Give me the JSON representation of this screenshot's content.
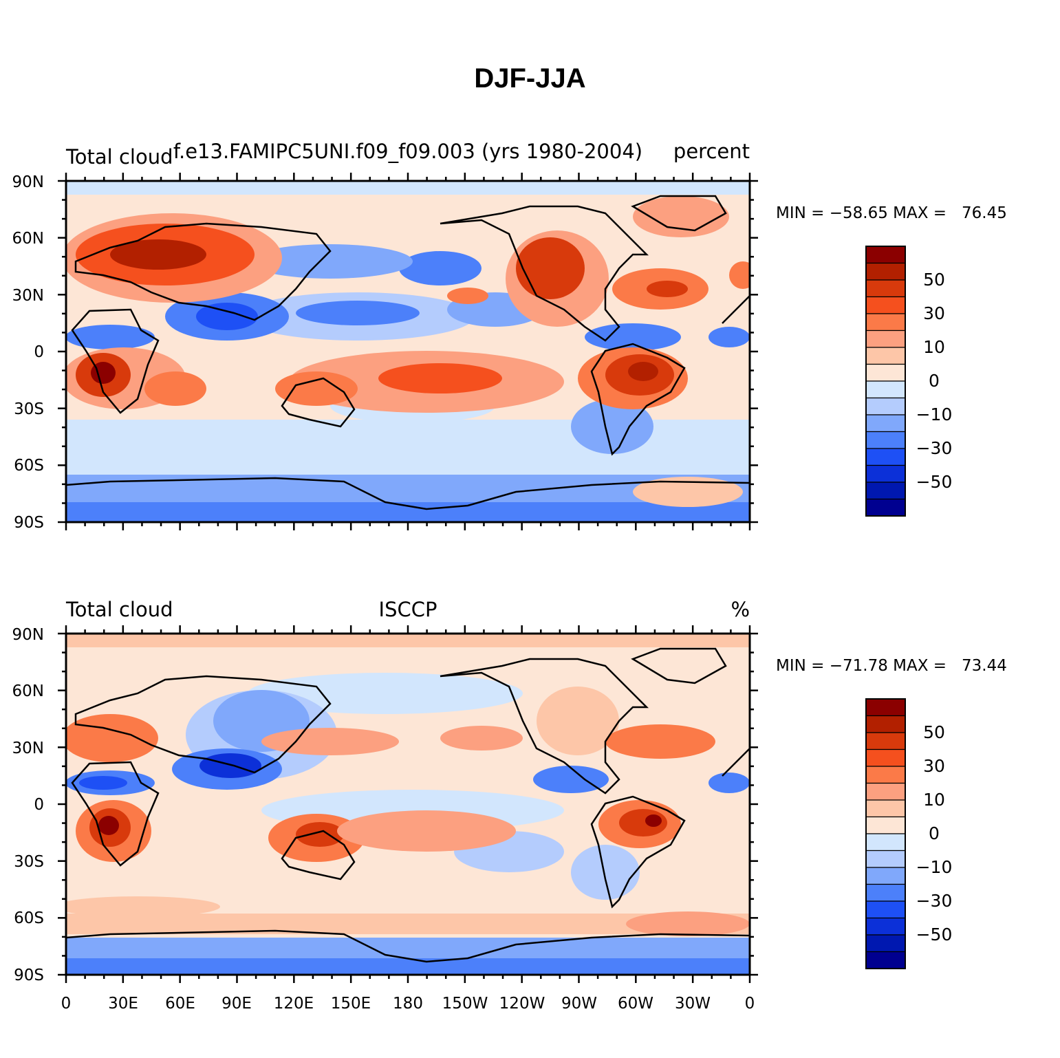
{
  "title": "DJF-JJA",
  "panels": [
    {
      "left_label": "Total cloud",
      "center_label": "f.e13.FAMIPC5UNI.f09_f09.003 (yrs 1980-2004)",
      "right_label": "percent",
      "stats": "MIN = −58.65 MAX =   76.45",
      "min": -58.65,
      "max": 76.45
    },
    {
      "left_label": "Total cloud",
      "center_label": "ISCCP",
      "right_label": "%",
      "stats": "MIN = −71.78 MAX =   73.44",
      "min": -71.78,
      "max": 73.44
    }
  ],
  "lat_ticks": [
    "90N",
    "60N",
    "30N",
    "0",
    "30S",
    "60S",
    "90S"
  ],
  "lon_ticks": [
    "0",
    "30E",
    "60E",
    "90E",
    "120E",
    "150E",
    "180",
    "150W",
    "120W",
    "90W",
    "60W",
    "30W",
    "0"
  ],
  "colorbar": {
    "labels": [
      "50",
      "30",
      "10",
      "0",
      "−10",
      "−30",
      "−50"
    ],
    "colors": [
      "#8b0000",
      "#b22000",
      "#d83a0c",
      "#f5501e",
      "#fb7a48",
      "#fca080",
      "#fdc6a8",
      "#fde6d6",
      "#d2e6fd",
      "#b4ccfd",
      "#80a8fb",
      "#4c80fa",
      "#1e50f5",
      "#0c30d8",
      "#0018b0",
      "#000090"
    ]
  }
}
